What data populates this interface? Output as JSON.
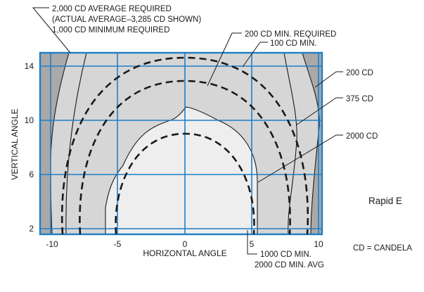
{
  "annotations": {
    "top_line1": "2,000 CD AVERAGE REQUIRED",
    "top_line2": "(ACTUAL AVERAGE–3,285 CD SHOWN)",
    "top_line3": "1,000 CD MINIMUM REQUIRED",
    "min200": "200 CD MIN. REQUIRED",
    "min100": "100 CD MIN.",
    "cd200": "200 CD",
    "cd375": "375 CD",
    "cd2000": "2000 CD",
    "bottom_line1": "1000 CD MIN.",
    "bottom_line2": "2000 CD MIN. AVG"
  },
  "axes": {
    "xlabel": "HORIZONTAL ANGLE",
    "ylabel": "VERTICAL ANGLE",
    "x_ticks": [
      "-10",
      "-5",
      "0",
      "5",
      "10"
    ],
    "y_ticks": [
      "14",
      "10",
      "6",
      "2"
    ]
  },
  "side_text": {
    "cut": "Rapid E",
    "legend": "CD = CANDELA"
  },
  "colors": {
    "grid": "#1f7fc7",
    "zone_light": "#eeeeee",
    "zone_mid": "#d6d6d6",
    "zone_dark": "#a9a9a9"
  }
}
